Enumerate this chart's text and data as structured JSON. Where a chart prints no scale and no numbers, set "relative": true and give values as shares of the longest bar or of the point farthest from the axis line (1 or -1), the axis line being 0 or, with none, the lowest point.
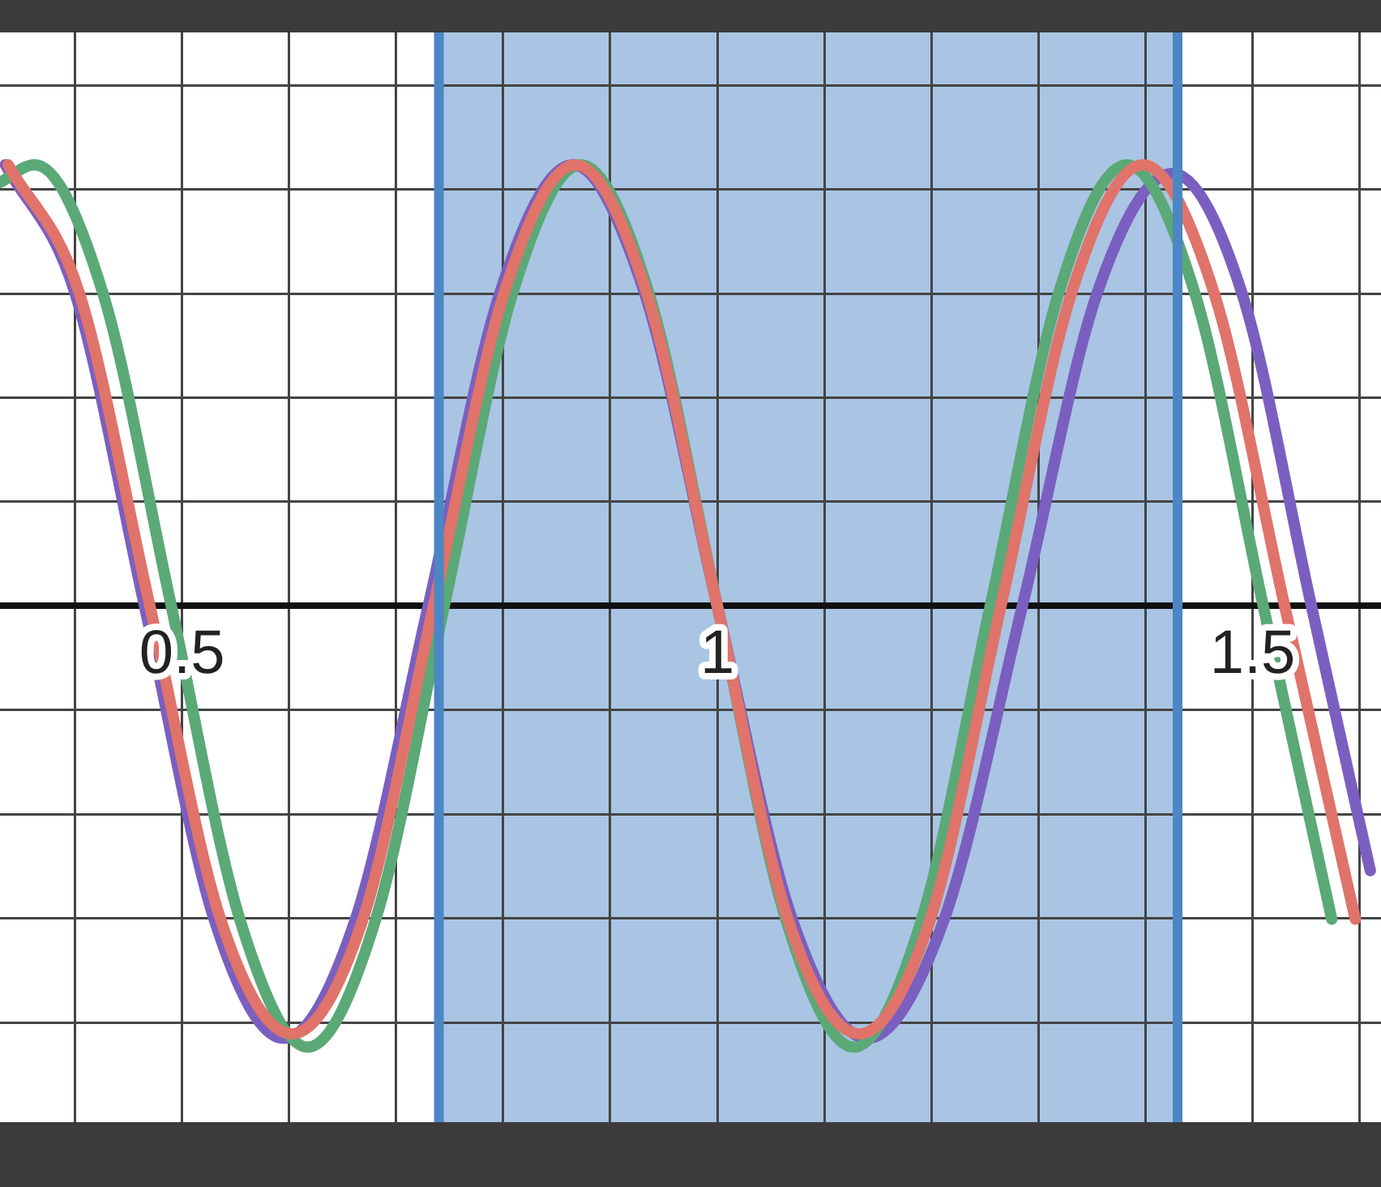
{
  "chart_data": {
    "type": "line",
    "relative": true,
    "grid": true,
    "legend": false,
    "marker": "none",
    "line_style": "solid",
    "tick_labels": "x",
    "xlim": [
      0.33,
      1.62
    ],
    "xticks": [
      {
        "value": 0.4,
        "label": null
      },
      0.5,
      {
        "value": 0.6,
        "label": null
      },
      {
        "value": 0.7,
        "label": null
      },
      {
        "value": 0.8,
        "label": null
      },
      {
        "value": 0.9,
        "label": null
      },
      1,
      {
        "value": 1.1,
        "label": null
      },
      {
        "value": 1.2,
        "label": null
      },
      {
        "value": 1.3,
        "label": null
      },
      {
        "value": 1.4,
        "label": null
      },
      1.5,
      {
        "value": 1.6,
        "label": null
      }
    ],
    "bands": [
      {
        "axis": "x",
        "from": 0.74,
        "to": 1.43,
        "color": "#a9c5e3"
      }
    ],
    "ref_lines": [
      {
        "axis": "x",
        "value": 0.74,
        "color": "#4c86c5"
      },
      {
        "axis": "x",
        "value": 1.43,
        "color": "#4c86c5"
      }
    ],
    "series": [
      {
        "color": "#e0736a",
        "x": [
          0.3375,
          0.404,
          0.47,
          0.536,
          0.6025,
          0.669,
          0.735,
          0.801,
          0.8675,
          0.934,
          1.0,
          1.066,
          1.1325,
          1.199,
          1.265,
          1.331,
          1.3975,
          1.464,
          1.53,
          1.596
        ],
        "values": [
          1,
          0.71,
          0,
          -0.71,
          -0.97,
          -0.71,
          0,
          0.71,
          1,
          0.71,
          0,
          -0.71,
          -0.97,
          -0.71,
          0,
          0.71,
          1,
          0.71,
          0,
          -0.71
        ]
      },
      {
        "color": "#5aa977",
        "x": [
          0.33,
          0.3625,
          0.426,
          0.49,
          0.554,
          0.6175,
          0.681,
          0.745,
          0.809,
          0.8725,
          0.936,
          1.0,
          1.064,
          1.1275,
          1.191,
          1.255,
          1.319,
          1.3825,
          1.446,
          1.51,
          1.574
        ],
        "values": [
          0.96,
          1,
          0.71,
          0,
          -0.71,
          -1,
          -0.71,
          0,
          0.71,
          1,
          0.71,
          0,
          -0.71,
          -1,
          -0.71,
          0,
          0.71,
          1,
          0.71,
          0,
          -0.71
        ]
      },
      {
        "color": "#7b5fc0",
        "x": [
          0.335,
          0.4,
          0.465,
          0.53,
          0.595,
          0.662,
          0.73,
          0.797,
          0.865,
          0.932,
          1.0,
          1.07,
          1.14,
          1.212,
          1.285,
          1.355,
          1.425,
          1.49,
          1.555,
          1.61
        ],
        "values": [
          1,
          0.71,
          0,
          -0.71,
          -0.98,
          -0.71,
          0,
          0.71,
          1,
          0.71,
          0,
          -0.71,
          -0.98,
          -0.71,
          0,
          0.71,
          0.98,
          0.71,
          0,
          -0.6
        ]
      }
    ]
  }
}
